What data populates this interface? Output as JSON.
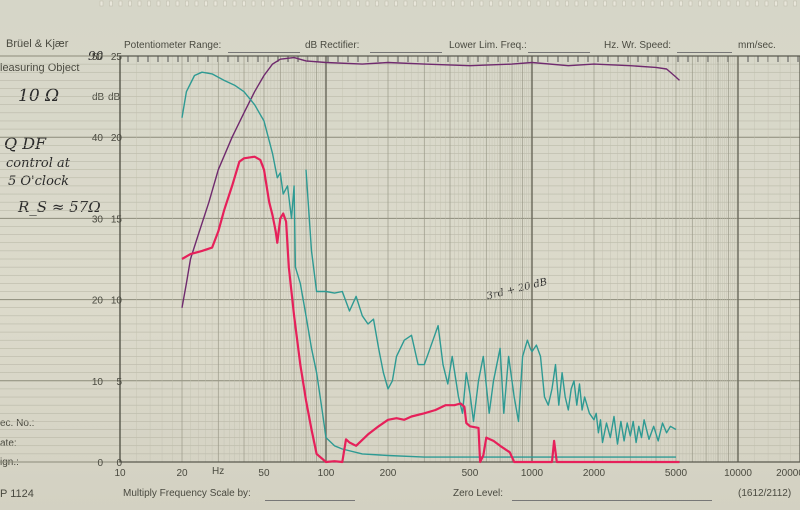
{
  "paper": {
    "brand": "Brüel & Kjær",
    "measuring_object": "leasuring Object",
    "potentiometer_range": "Potentiometer Range:",
    "db_rectifier": "dB Rectifier:",
    "lower_lim_freq": "Lower Lim. Freq.:",
    "hz_wr_speed": "Hz. Wr. Speed:",
    "mm_sec": "mm/sec.",
    "db_label_a": "dB",
    "db_label_b": "dB",
    "hz_label": "Hz",
    "rec_no": "ec. No.:",
    "date": "ate:",
    "sign": "ign.:",
    "form_no": "P 1124",
    "multiply": "Multiply Frequency Scale by:",
    "zero_level": "Zero Level:",
    "code": "(1612/2112)"
  },
  "handwriting": {
    "object": "10 Ω",
    "note1": "Q DF",
    "note2": "control at",
    "note3": "5 O'clock",
    "rs": "R_S ≈ 57Ω",
    "top": "90",
    "trace_note": "3rd + 20 dB"
  },
  "chart_data": {
    "type": "line",
    "x_scale": "log",
    "xlim": [
      10,
      20000
    ],
    "ylim": [
      0,
      25
    ],
    "x_ticks": [
      "10",
      "20",
      "50",
      "100",
      "200",
      "500",
      "1000",
      "2000",
      "5000",
      "10000",
      "20000"
    ],
    "y_ticks_inner": [
      "0",
      "5",
      "10",
      "15",
      "20",
      "25"
    ],
    "y_ticks_outer": [
      "0",
      "10",
      "20",
      "30",
      "40",
      "50"
    ],
    "series": [
      {
        "color": "#6f2a6e",
        "points": [
          [
            20,
            9.5
          ],
          [
            21,
            11
          ],
          [
            22,
            12.5
          ],
          [
            24,
            14
          ],
          [
            27,
            16
          ],
          [
            30,
            18
          ],
          [
            35,
            20
          ],
          [
            40,
            21.5
          ],
          [
            45,
            22.8
          ],
          [
            50,
            23.8
          ],
          [
            55,
            24.5
          ],
          [
            60,
            24.8
          ],
          [
            70,
            24.9
          ],
          [
            80,
            24.7
          ],
          [
            100,
            24.6
          ],
          [
            150,
            24.5
          ],
          [
            200,
            24.6
          ],
          [
            300,
            24.5
          ],
          [
            500,
            24.4
          ],
          [
            800,
            24.5
          ],
          [
            1000,
            24.6
          ],
          [
            1500,
            24.4
          ],
          [
            2000,
            24.5
          ],
          [
            3000,
            24.4
          ],
          [
            4000,
            24.3
          ],
          [
            4500,
            24.2
          ],
          [
            5000,
            23.7
          ],
          [
            5200,
            23.5
          ]
        ]
      },
      {
        "color": "#2e9a93",
        "points": [
          [
            20,
            21.2
          ],
          [
            21,
            22.8
          ],
          [
            23,
            23.8
          ],
          [
            25,
            24
          ],
          [
            28,
            23.9
          ],
          [
            32,
            23.5
          ],
          [
            36,
            23.2
          ],
          [
            40,
            22.8
          ],
          [
            45,
            22
          ],
          [
            50,
            21
          ],
          [
            55,
            19
          ],
          [
            58,
            17.5
          ],
          [
            60,
            17.8
          ],
          [
            62,
            16.5
          ],
          [
            65,
            17
          ],
          [
            68,
            15
          ],
          [
            70,
            17
          ],
          [
            71,
            12
          ],
          [
            75,
            11
          ],
          [
            80,
            9
          ],
          [
            85,
            7
          ],
          [
            90,
            5.5
          ],
          [
            95,
            3.5
          ],
          [
            100,
            1.5
          ],
          [
            110,
            1
          ],
          [
            120,
            0.8
          ],
          [
            150,
            0.5
          ],
          [
            200,
            0.4
          ],
          [
            300,
            0.3
          ],
          [
            500,
            0.3
          ],
          [
            1000,
            0.3
          ],
          [
            2000,
            0.3
          ],
          [
            5000,
            0.3
          ]
        ]
      },
      {
        "color": "#2e9a93",
        "points": [
          [
            80,
            18
          ],
          [
            85,
            13
          ],
          [
            90,
            10.5
          ],
          [
            100,
            10.5
          ],
          [
            110,
            10.4
          ],
          [
            120,
            10.5
          ],
          [
            130,
            9.3
          ],
          [
            140,
            10.2
          ],
          [
            150,
            9
          ],
          [
            160,
            8.5
          ],
          [
            170,
            8.8
          ],
          [
            180,
            7
          ],
          [
            190,
            5.5
          ],
          [
            200,
            4.5
          ],
          [
            210,
            5
          ],
          [
            220,
            6.5
          ],
          [
            240,
            7.5
          ],
          [
            260,
            7.8
          ],
          [
            280,
            6
          ],
          [
            300,
            6
          ],
          [
            320,
            7
          ],
          [
            350,
            8.4
          ],
          [
            370,
            6
          ],
          [
            390,
            4.8
          ],
          [
            410,
            6.5
          ],
          [
            440,
            4
          ],
          [
            460,
            3
          ],
          [
            480,
            5.5
          ],
          [
            500,
            4.2
          ],
          [
            520,
            2.5
          ],
          [
            550,
            5
          ],
          [
            580,
            6.5
          ],
          [
            620,
            3
          ],
          [
            650,
            5
          ],
          [
            700,
            7
          ],
          [
            730,
            3
          ],
          [
            770,
            6.5
          ],
          [
            820,
            4
          ],
          [
            860,
            2.5
          ],
          [
            900,
            6.5
          ],
          [
            950,
            7.5
          ],
          [
            980,
            7
          ],
          [
            1000,
            6.8
          ],
          [
            1050,
            7.2
          ],
          [
            1100,
            6.5
          ],
          [
            1150,
            4
          ],
          [
            1200,
            3.5
          ],
          [
            1250,
            4.5
          ],
          [
            1300,
            6
          ],
          [
            1350,
            3.5
          ],
          [
            1400,
            5.5
          ],
          [
            1450,
            4
          ],
          [
            1500,
            3.2
          ],
          [
            1550,
            4.5
          ],
          [
            1600,
            5
          ],
          [
            1650,
            3.5
          ],
          [
            1700,
            4.8
          ],
          [
            1750,
            3.2
          ],
          [
            1800,
            4
          ],
          [
            1900,
            3
          ],
          [
            2000,
            2.6
          ],
          [
            2050,
            3
          ],
          [
            2100,
            1.8
          ],
          [
            2150,
            2.6
          ],
          [
            2200,
            1.2
          ],
          [
            2300,
            2.4
          ],
          [
            2400,
            1.5
          ],
          [
            2500,
            2.8
          ],
          [
            2600,
            1.1
          ],
          [
            2700,
            2.5
          ],
          [
            2800,
            1.3
          ],
          [
            2900,
            2.4
          ],
          [
            3000,
            1.6
          ],
          [
            3100,
            2.5
          ],
          [
            3200,
            1.2
          ],
          [
            3300,
            2.2
          ],
          [
            3400,
            1.5
          ],
          [
            3500,
            2.6
          ],
          [
            3700,
            1.4
          ],
          [
            3900,
            2.2
          ],
          [
            4100,
            1.3
          ],
          [
            4300,
            2.4
          ],
          [
            4500,
            1.8
          ],
          [
            4700,
            2.2
          ],
          [
            5000,
            2
          ]
        ]
      },
      {
        "color": "#e6205a",
        "points": [
          [
            20,
            12.5
          ],
          [
            22,
            12.8
          ],
          [
            25,
            13
          ],
          [
            28,
            13.2
          ],
          [
            30,
            14.2
          ],
          [
            32,
            15.5
          ],
          [
            35,
            17
          ],
          [
            38,
            18.5
          ],
          [
            40,
            18.7
          ],
          [
            45,
            18.8
          ],
          [
            48,
            18.6
          ],
          [
            50,
            18
          ],
          [
            53,
            16
          ],
          [
            55,
            15.2
          ],
          [
            57,
            14.2
          ],
          [
            58,
            13.5
          ],
          [
            60,
            15
          ],
          [
            62,
            15.3
          ],
          [
            64,
            14.8
          ],
          [
            66,
            12
          ],
          [
            70,
            9
          ],
          [
            75,
            6
          ],
          [
            80,
            3.8
          ],
          [
            85,
            2
          ],
          [
            90,
            0.5
          ],
          [
            100,
            0
          ],
          [
            110,
            0.05
          ],
          [
            120,
            0
          ],
          [
            125,
            1.4
          ],
          [
            130,
            1.2
          ],
          [
            140,
            1
          ],
          [
            160,
            1.7
          ],
          [
            180,
            2.2
          ],
          [
            200,
            2.6
          ],
          [
            220,
            2.7
          ],
          [
            240,
            2.6
          ],
          [
            260,
            2.8
          ],
          [
            300,
            3
          ],
          [
            340,
            3.2
          ],
          [
            380,
            3.5
          ],
          [
            420,
            3.5
          ],
          [
            450,
            3.6
          ],
          [
            470,
            3.4
          ],
          [
            480,
            2.4
          ],
          [
            500,
            2.2
          ],
          [
            550,
            2.1
          ],
          [
            560,
            0
          ],
          [
            580,
            0.4
          ],
          [
            600,
            1.5
          ],
          [
            650,
            1.3
          ],
          [
            700,
            1
          ],
          [
            780,
            0.6
          ],
          [
            820,
            0
          ],
          [
            1000,
            0
          ],
          [
            1250,
            0
          ],
          [
            1280,
            1.3
          ],
          [
            1320,
            0
          ],
          [
            2000,
            0
          ],
          [
            5200,
            0
          ]
        ]
      }
    ]
  }
}
